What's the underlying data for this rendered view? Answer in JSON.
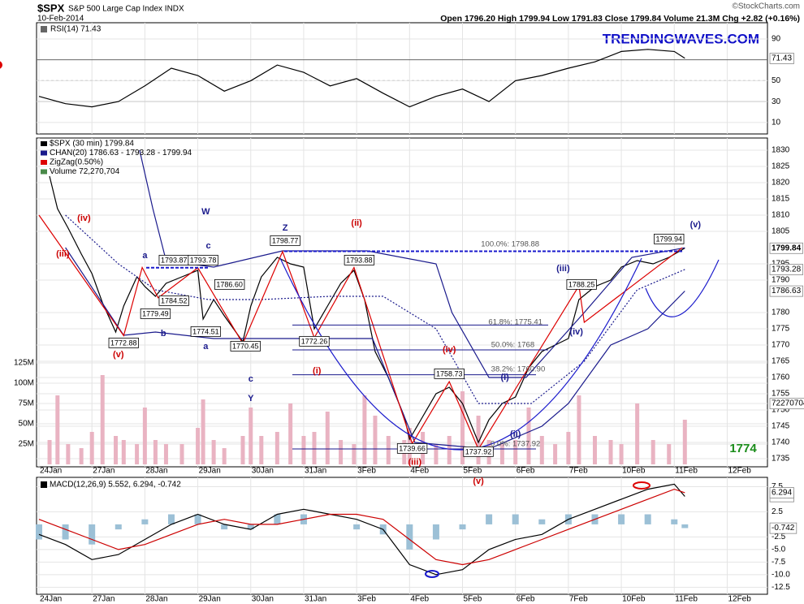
{
  "header": {
    "symbol": "$SPX",
    "name": "S&P 500 Large Cap Index INDX",
    "date": "10-Feb-2014",
    "quote": "Open 1796.20  High 1799.94  Low 1791.83  Close 1799.84  Volume 21.3M  Chg +2.82 (+0.16%)",
    "copyright": "©StockCharts.com",
    "watermark": "TRENDINGWAVES.COM"
  },
  "chart_data": [
    {
      "type": "line",
      "title": "RSI(14) 71.43",
      "color": "#000000",
      "x": [
        0,
        0.5,
        1,
        1.5,
        2,
        2.5,
        3,
        3.5,
        4,
        4.5,
        5,
        5.5,
        6,
        6.5,
        7,
        7.5,
        8,
        8.5,
        9,
        9.5,
        10,
        10.5,
        11,
        11.5,
        12,
        12.2
      ],
      "values": [
        35,
        28,
        25,
        30,
        45,
        62,
        55,
        40,
        50,
        65,
        58,
        45,
        52,
        38,
        25,
        35,
        42,
        30,
        50,
        55,
        62,
        68,
        78,
        80,
        78,
        71.43
      ],
      "xlim": [
        0,
        13.76
      ],
      "ylim": [
        -1,
        105.5
      ],
      "yticks": [
        10,
        30,
        50,
        90
      ],
      "reference_lines": [
        30,
        50,
        70
      ]
    },
    {
      "type": "line",
      "xlim": [
        0,
        13.76
      ],
      "ylim": [
        1732.5,
        1833.75
      ],
      "yticks": [
        1735,
        1740,
        1745,
        1750,
        1755,
        1760,
        1765,
        1770,
        1775,
        1780,
        1790,
        1795,
        1805,
        1810,
        1815,
        1820,
        1825,
        1830
      ],
      "y2lim": [
        -3,
        402
      ],
      "y2ticks": [
        {
          "value": 25,
          "label": "25M"
        },
        {
          "value": 50,
          "label": "50M"
        },
        {
          "value": 75,
          "label": "75M"
        },
        {
          "value": 100,
          "label": "100M"
        },
        {
          "value": 125,
          "label": "125M"
        }
      ],
      "xticks": [
        {
          "value": 0,
          "label": "24Jan"
        },
        {
          "value": 1,
          "label": "27Jan"
        },
        {
          "value": 2,
          "label": "28Jan"
        },
        {
          "value": 3,
          "label": "29Jan"
        },
        {
          "value": 4,
          "label": "30Jan"
        },
        {
          "value": 5,
          "label": "31Jan"
        },
        {
          "value": 6,
          "label": "3Feb"
        },
        {
          "value": 7,
          "label": "4Feb"
        },
        {
          "value": 8,
          "label": "5Feb"
        },
        {
          "value": 9,
          "label": "6Feb"
        },
        {
          "value": 10,
          "label": "7Feb"
        },
        {
          "value": 11,
          "label": "10Feb"
        },
        {
          "value": 12,
          "label": "11Feb"
        },
        {
          "value": 13,
          "label": "12Feb"
        }
      ],
      "x": [
        0.2,
        0.35,
        0.55,
        0.8,
        1.0,
        1.2,
        1.45,
        1.6,
        1.85,
        2.0,
        2.2,
        2.4,
        2.7,
        3.0,
        3.1,
        3.3,
        3.5,
        3.85,
        4.0,
        4.2,
        4.5,
        4.75,
        5.0,
        5.2,
        5.45,
        5.7,
        5.95,
        6.15,
        6.35,
        6.6,
        6.9,
        7.0,
        7.25,
        7.5,
        7.75,
        8.0,
        8.3,
        8.5,
        8.75,
        9.0,
        9.25,
        9.5,
        9.75,
        10.0,
        10.2,
        10.5,
        10.8,
        11.0,
        11.3,
        11.6,
        11.9,
        12.2
      ],
      "volume_total": 72270704,
      "series": [
        {
          "name": "$SPX (30 min) 1799.84",
          "color": "#000000",
          "values": [
            1822,
            1812,
            1806,
            1798,
            1792,
            1783,
            1774,
            1782,
            1791,
            1788,
            1785,
            1789,
            1791,
            1793,
            1778,
            1784,
            1779,
            1771,
            1782,
            1791,
            1797,
            1795,
            1794,
            1775,
            1782,
            1789,
            1793,
            1784,
            1768,
            1760,
            1748,
            1741,
            1748,
            1755,
            1757,
            1752,
            1740,
            1747,
            1752,
            1754,
            1763,
            1768,
            1770,
            1772,
            1784,
            1788,
            1790,
            1794,
            1796,
            1795,
            1797,
            1799.84
          ]
        },
        {
          "name": "CHAN(20) 1786.63 - 1793.28 - 1799.94",
          "color": "#1a1a8c",
          "x": [
            1.9,
            2.15,
            2.4,
            3.3,
            4.6,
            6.2,
            7.5,
            7.8,
            8.5,
            9.2,
            10.3,
            11.2,
            12.2
          ],
          "values": [
            1830,
            1812,
            1796,
            1794,
            1799,
            1799,
            1795,
            1780,
            1760,
            1760,
            1780,
            1797,
            1799.94
          ]
        },
        {
          "color": "#1a1a8c",
          "dashed": true,
          "x": [
            0.5,
            1.5,
            2.2,
            3.2,
            4.2,
            5.5,
            6.5,
            7.5,
            8.3,
            9.3,
            10.3,
            11.3,
            12.2
          ],
          "values": [
            1810,
            1795,
            1787,
            1784,
            1784,
            1785,
            1785,
            1775,
            1752,
            1752,
            1765,
            1787,
            1793.28
          ]
        },
        {
          "color": "#1a1a8c",
          "x": [
            0.5,
            1.6,
            2.2,
            3.3,
            4.3,
            5.5,
            6.3,
            7.1,
            8.5,
            9.5,
            10.0,
            10.8,
            11.5,
            12.2
          ],
          "values": [
            1800,
            1773,
            1774,
            1772,
            1772,
            1772,
            1772,
            1740,
            1738,
            1745,
            1752,
            1770,
            1775,
            1786.63
          ]
        },
        {
          "name": "ZigZag(0.50%)",
          "color": "#dd0000",
          "x": [
            0,
            1.6,
            1.95,
            2.25,
            3.0,
            3.85,
            4.6,
            5.2,
            5.95,
            7.05,
            7.75,
            8.3,
            10.2,
            10.3,
            12.15
          ],
          "values": [
            1810,
            1772.88,
            1793.87,
            1784.52,
            1793.78,
            1770.45,
            1798.77,
            1772.26,
            1793.88,
            1739.66,
            1758.73,
            1737.92,
            1788.25,
            1777,
            1799.94
          ]
        },
        {
          "name": "Volume 72,270,704",
          "type": "bar",
          "axis": "y2",
          "color": "#e9b3c2",
          "values": [
            30,
            85,
            25,
            20,
            40,
            110,
            35,
            30,
            25,
            70,
            30,
            25,
            25,
            45,
            80,
            30,
            20,
            35,
            70,
            35,
            40,
            75,
            35,
            40,
            65,
            30,
            25,
            85,
            60,
            35,
            30,
            45,
            40,
            25,
            35,
            90,
            60,
            30,
            25,
            30,
            70,
            35,
            25,
            40,
            85,
            35,
            30,
            25,
            75,
            30,
            25,
            55
          ]
        }
      ],
      "annotations": [
        {
          "text": "(iii)",
          "x": 0.45,
          "y": 1798,
          "color": "#cc0000"
        },
        {
          "text": "(iv)",
          "x": 0.85,
          "y": 1809,
          "color": "#cc0000"
        },
        {
          "text": "(v)",
          "x": 1.5,
          "y": 1767,
          "color": "#cc0000"
        },
        {
          "text": "1772.88",
          "x": 1.6,
          "y": 1770.5,
          "color": "#000000",
          "box": true
        },
        {
          "text": "a",
          "x": 2.0,
          "y": 1797.5,
          "color": "#1a1a8c"
        },
        {
          "text": "1793.87",
          "x": 2.55,
          "y": 1796,
          "color": "#000000",
          "box": true
        },
        {
          "text": "b",
          "x": 2.35,
          "y": 1773.5,
          "color": "#1a1a8c"
        },
        {
          "text": "1779.49",
          "x": 2.2,
          "y": 1779.5,
          "color": "#000000",
          "box": true
        },
        {
          "text": "1784.52",
          "x": 2.55,
          "y": 1783.5,
          "color": "#000000",
          "box": true
        },
        {
          "text": "c",
          "x": 3.2,
          "y": 1800.5,
          "color": "#1a1a8c"
        },
        {
          "text": "W",
          "x": 3.15,
          "y": 1811,
          "color": "#1a1a8c"
        },
        {
          "text": "1793.78",
          "x": 3.1,
          "y": 1796,
          "color": "#000000",
          "box": true
        },
        {
          "text": "1786.60",
          "x": 3.6,
          "y": 1788.5,
          "color": "#000000",
          "box": true
        },
        {
          "text": "1774.51",
          "x": 3.15,
          "y": 1774,
          "color": "#000000",
          "box": true
        },
        {
          "text": "a",
          "x": 3.15,
          "y": 1769.5,
          "color": "#1a1a8c"
        },
        {
          "text": "1770.45",
          "x": 3.9,
          "y": 1769.5,
          "color": "#000000",
          "box": true
        },
        {
          "text": "c",
          "x": 4.0,
          "y": 1759.5,
          "color": "#1a1a8c"
        },
        {
          "text": "Y",
          "x": 4.0,
          "y": 1753.5,
          "color": "#1a1a8c"
        },
        {
          "text": "Z",
          "x": 4.65,
          "y": 1806,
          "color": "#1a1a8c"
        },
        {
          "text": "1798.77",
          "x": 4.65,
          "y": 1802,
          "color": "#000000",
          "box": true
        },
        {
          "text": "(i)",
          "x": 5.25,
          "y": 1762,
          "color": "#cc0000"
        },
        {
          "text": "1772.26",
          "x": 5.2,
          "y": 1771,
          "color": "#000000",
          "box": true
        },
        {
          "text": "(ii)",
          "x": 6.0,
          "y": 1807.5,
          "color": "#cc0000"
        },
        {
          "text": "1793.88",
          "x": 6.05,
          "y": 1796,
          "color": "#000000",
          "box": true
        },
        {
          "text": "(iv)",
          "x": 7.75,
          "y": 1768.5,
          "color": "#cc0000"
        },
        {
          "text": "1758.73",
          "x": 7.75,
          "y": 1761,
          "color": "#000000",
          "box": true
        },
        {
          "text": "1739.66",
          "x": 7.05,
          "y": 1738,
          "color": "#000000",
          "box": true
        },
        {
          "text": "(iii)",
          "x": 7.1,
          "y": 1733.9,
          "color": "#cc0000"
        },
        {
          "text": "1737.92",
          "x": 8.3,
          "y": 1737,
          "color": "#000000",
          "box": true
        },
        {
          "text": "(v)",
          "x": 8.3,
          "y": 1728,
          "color": "#cc0000"
        },
        {
          "text": "100.0%: 1798.88",
          "x": 8.9,
          "y": 1801,
          "color": "#555555"
        },
        {
          "text": "61.8%: 1775.41",
          "x": 9.0,
          "y": 1777,
          "color": "#555555"
        },
        {
          "text": "50.0%: 1768",
          "x": 8.95,
          "y": 1770,
          "color": "#555555"
        },
        {
          "text": "38.2%: 1760.90",
          "x": 9.05,
          "y": 1762.5,
          "color": "#555555"
        },
        {
          "text": "0.0%: 1737.92",
          "x": 9.0,
          "y": 1739.5,
          "color": "#555555"
        },
        {
          "text": "(i)",
          "x": 8.8,
          "y": 1760,
          "color": "#1a1a8c"
        },
        {
          "text": "(ii)",
          "x": 9.0,
          "y": 1742.5,
          "color": "#1a1a8c"
        },
        {
          "text": "(iii)",
          "x": 9.9,
          "y": 1793.5,
          "color": "#1a1a8c"
        },
        {
          "text": "1788.25",
          "x": 10.25,
          "y": 1788.5,
          "color": "#000000",
          "box": true
        },
        {
          "text": "(iv)",
          "x": 10.15,
          "y": 1774,
          "color": "#1a1a8c"
        },
        {
          "text": "1799.94",
          "x": 11.9,
          "y": 1802.5,
          "color": "#000000",
          "box": true
        },
        {
          "text": "(v)",
          "x": 12.4,
          "y": 1807,
          "color": "#1a1a8c"
        },
        {
          "text": "1774",
          "x": 13.3,
          "y": 1738,
          "color": "#1a8c1a"
        }
      ]
    },
    {
      "type": "line",
      "title": "MACD(12,26,9) 5.552, 6.294, -0.742",
      "xlim": [
        0,
        13.76
      ],
      "ylim": [
        -13.9,
        9.35
      ],
      "yticks": [
        7.5,
        2.5,
        -2.5,
        {
          "value": -5,
          "label": "-5.0"
        },
        -7.5,
        {
          "value": -10,
          "label": "-10.0"
        },
        -12.5
      ],
      "xticks": [
        {
          "value": 0,
          "label": "24Jan"
        },
        {
          "value": 1,
          "label": "27Jan"
        },
        {
          "value": 2,
          "label": "28Jan"
        },
        {
          "value": 3,
          "label": "29Jan"
        },
        {
          "value": 4,
          "label": "30Jan"
        },
        {
          "value": 5,
          "label": "31Jan"
        },
        {
          "value": 6,
          "label": "3Feb"
        },
        {
          "value": 7,
          "label": "4Feb"
        },
        {
          "value": 8,
          "label": "5Feb"
        },
        {
          "value": 9,
          "label": "6Feb"
        },
        {
          "value": 10,
          "label": "7Feb"
        },
        {
          "value": 11,
          "label": "10Feb"
        },
        {
          "value": 12,
          "label": "11Feb"
        },
        {
          "value": 13,
          "label": "12Feb"
        }
      ],
      "x": [
        0,
        0.5,
        1,
        1.5,
        2,
        2.5,
        3,
        3.5,
        4,
        4.5,
        5,
        5.5,
        6,
        6.5,
        7,
        7.5,
        8,
        8.5,
        9,
        9.5,
        10,
        10.5,
        11,
        11.5,
        12,
        12.2
      ],
      "series": [
        {
          "type": "bar",
          "color": "#9cc0d6",
          "values": [
            -3,
            -3,
            -4,
            -1,
            1,
            2,
            2,
            -1,
            -1,
            2,
            2,
            0,
            -1,
            -2,
            -5,
            -3,
            -1,
            2,
            2,
            1,
            2,
            2,
            2,
            2,
            1,
            -0.742
          ]
        },
        {
          "color": "#000000",
          "values": [
            -2,
            -4,
            -7,
            -6,
            -3,
            0,
            2,
            0,
            -1,
            2,
            3,
            2,
            1,
            -1,
            -8,
            -10,
            -9,
            -5,
            -3,
            -2,
            1,
            3,
            5,
            7,
            8,
            5.552
          ]
        },
        {
          "color": "#cc0000",
          "values": [
            1,
            -1,
            -3,
            -5,
            -4,
            -2,
            0,
            1,
            0,
            0,
            1,
            2,
            2,
            1,
            -3,
            -7,
            -8,
            -7,
            -5,
            -3,
            -1,
            1,
            3,
            5,
            7,
            6.294
          ]
        }
      ]
    }
  ]
}
